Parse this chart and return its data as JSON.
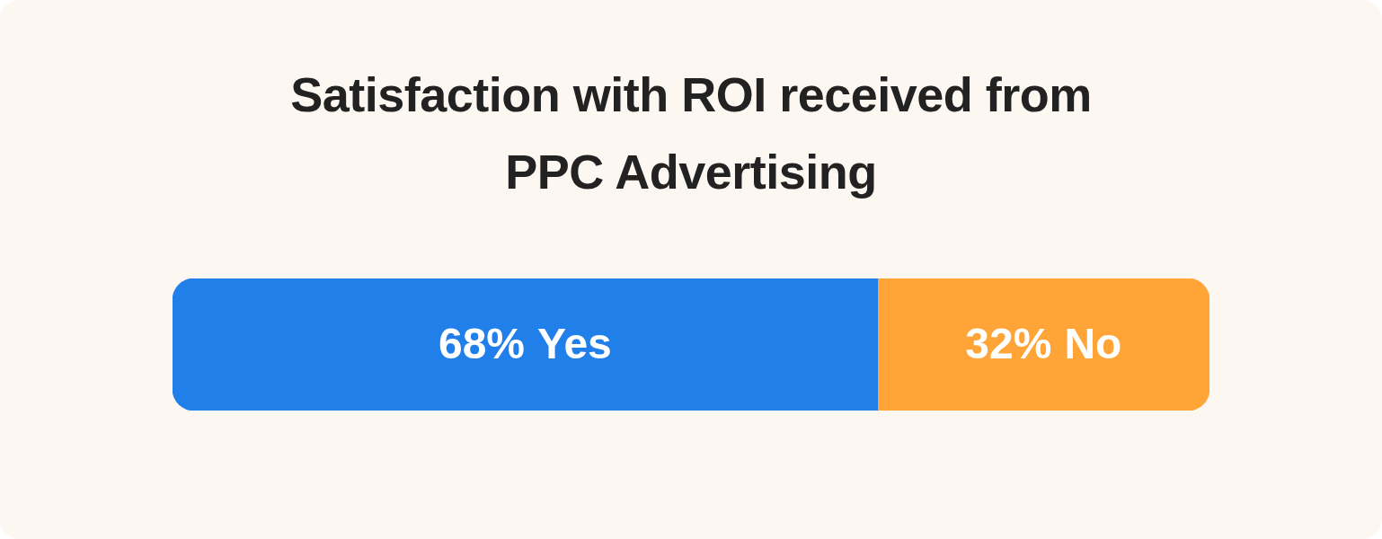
{
  "chart_data": {
    "type": "bar",
    "title": "Satisfaction with ROI received from PPC Advertising",
    "orientation": "horizontal",
    "stacked": true,
    "categories": [
      null
    ],
    "xlim": [
      0,
      100
    ],
    "tick_labels": false,
    "grid": false,
    "legend": false,
    "series": [
      {
        "name": "Yes",
        "color": "#217fea",
        "values": [
          68
        ],
        "value_labels": [
          "68%"
        ]
      },
      {
        "name": "No",
        "color": "#ffa436",
        "values": [
          32
        ],
        "value_labels": [
          "32%"
        ]
      }
    ]
  }
}
